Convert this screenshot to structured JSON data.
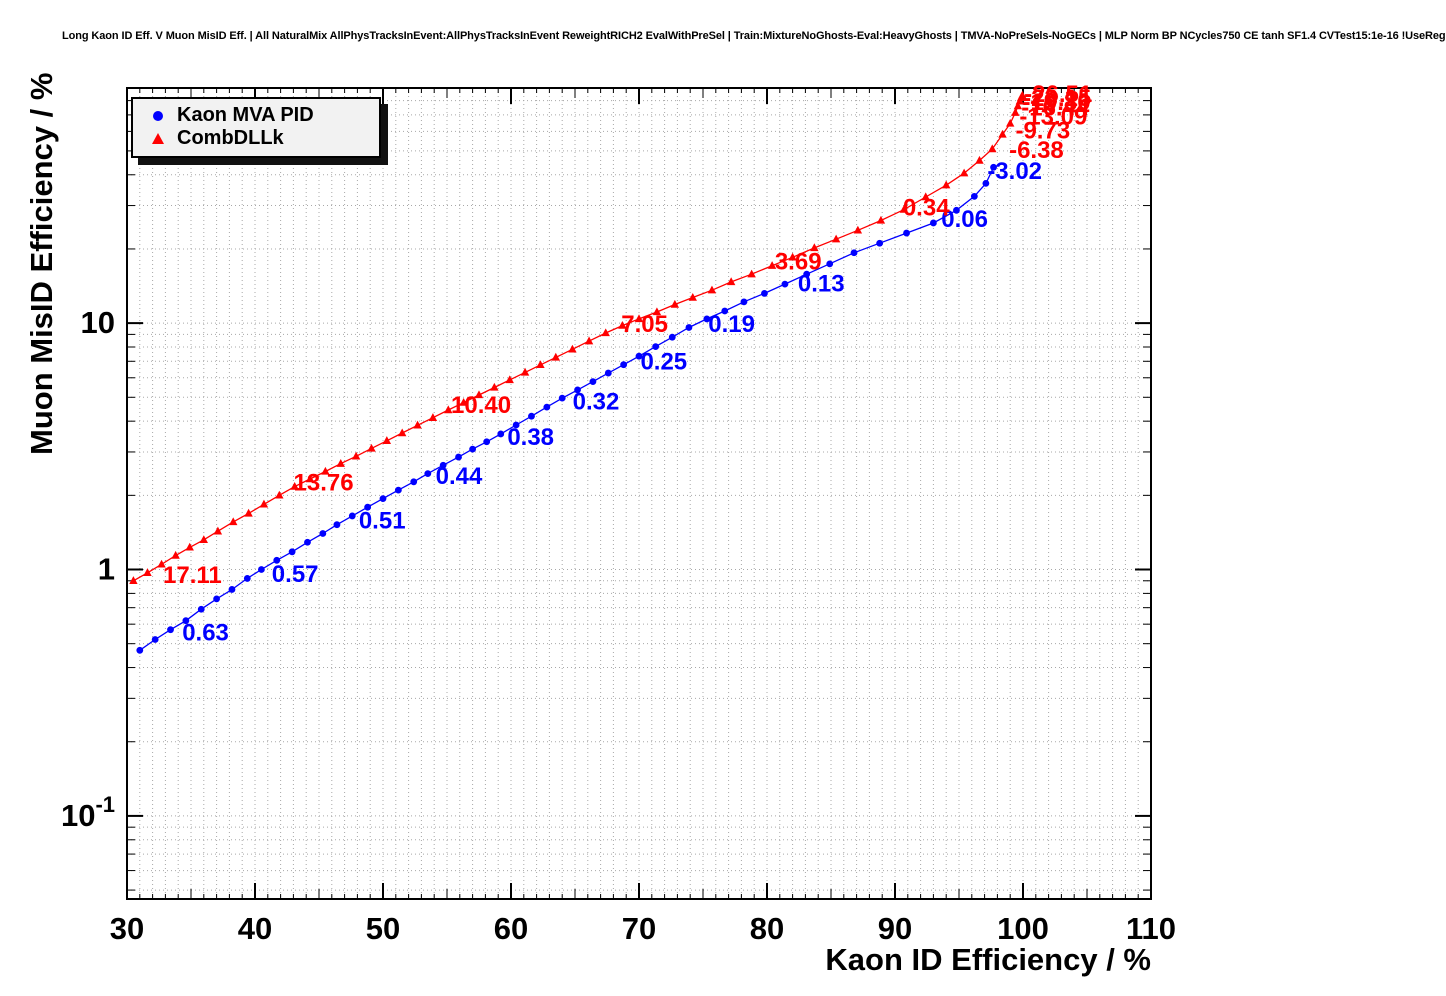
{
  "legend": {
    "entries": [
      {
        "label": "Kaon MVA PID",
        "marker": "circle",
        "color": "#0000ff"
      },
      {
        "label": "CombDLLk",
        "marker": "triangle",
        "color": "#ff0000"
      }
    ]
  },
  "chart_data": {
    "type": "line",
    "title": "Long Kaon ID Eff. V Muon MisID Eff. | All NaturalMix AllPhysTracksInEvent:AllPhysTracksInEvent ReweightRICH2 EvalWithPreSel | Train:MixtureNoGhosts-Eval:HeavyGhosts | TMVA-NoPreSels-NoGECs | MLP Norm BP NCycles750 CE tanh SF1.4 CVTest15:1e-16 !UseReg",
    "xlabel": "Kaon ID Efficiency / %",
    "ylabel": "Muon MisID Efficiency / %",
    "xlim": [
      30,
      110
    ],
    "ylim": [
      0.046,
      90
    ],
    "y_scale": "log",
    "grid": true,
    "legend_position": "top-left",
    "x_ticks": [
      30,
      40,
      50,
      60,
      70,
      80,
      90,
      100,
      110
    ],
    "x_minor_step": 1,
    "y_ticks": [
      {
        "label": "10",
        "value": 10
      },
      {
        "label": "1",
        "value": 1
      },
      {
        "label": "10",
        "exp": "-1",
        "value": 0.1
      }
    ],
    "series": [
      {
        "name": "Kaon MVA PID",
        "color": "#0000ff",
        "marker": "circle",
        "points": [
          [
            31.0,
            0.47
          ],
          [
            32.2,
            0.52
          ],
          [
            33.4,
            0.57
          ],
          [
            34.6,
            0.62
          ],
          [
            35.8,
            0.69
          ],
          [
            37.0,
            0.76
          ],
          [
            38.2,
            0.83
          ],
          [
            39.4,
            0.92
          ],
          [
            40.5,
            1.0
          ],
          [
            41.7,
            1.09
          ],
          [
            42.9,
            1.18
          ],
          [
            44.1,
            1.29
          ],
          [
            45.3,
            1.4
          ],
          [
            46.4,
            1.52
          ],
          [
            47.6,
            1.65
          ],
          [
            48.8,
            1.79
          ],
          [
            50.0,
            1.94
          ],
          [
            51.2,
            2.1
          ],
          [
            52.4,
            2.27
          ],
          [
            53.5,
            2.45
          ],
          [
            54.7,
            2.65
          ],
          [
            55.9,
            2.86
          ],
          [
            57.0,
            3.08
          ],
          [
            58.1,
            3.3
          ],
          [
            59.2,
            3.55
          ],
          [
            60.4,
            3.86
          ],
          [
            61.6,
            4.19
          ],
          [
            62.8,
            4.56
          ],
          [
            64.0,
            4.96
          ],
          [
            65.2,
            5.36
          ],
          [
            66.4,
            5.79
          ],
          [
            67.6,
            6.27
          ],
          [
            68.8,
            6.78
          ],
          [
            70.0,
            7.34
          ],
          [
            71.3,
            8.03
          ],
          [
            72.6,
            8.77
          ],
          [
            73.9,
            9.6
          ],
          [
            75.3,
            10.4
          ],
          [
            76.7,
            11.2
          ],
          [
            78.2,
            12.2
          ],
          [
            79.8,
            13.2
          ],
          [
            81.4,
            14.4
          ],
          [
            83.1,
            15.8
          ],
          [
            84.9,
            17.4
          ],
          [
            86.8,
            19.3
          ],
          [
            88.8,
            21.1
          ],
          [
            90.9,
            23.2
          ],
          [
            93.0,
            25.5
          ],
          [
            94.8,
            28.7
          ],
          [
            96.2,
            32.7
          ],
          [
            97.1,
            36.9
          ],
          [
            97.7,
            42.9
          ]
        ],
        "labels": [
          {
            "text": "0.63",
            "x": 34.0,
            "y": 0.555
          },
          {
            "text": "0.57",
            "x": 41.0,
            "y": 0.96
          },
          {
            "text": "0.51",
            "x": 47.8,
            "y": 1.58
          },
          {
            "text": "0.44",
            "x": 53.8,
            "y": 2.4
          },
          {
            "text": "0.38",
            "x": 59.4,
            "y": 3.45
          },
          {
            "text": "0.32",
            "x": 64.5,
            "y": 4.8
          },
          {
            "text": "0.25",
            "x": 69.8,
            "y": 7.0
          },
          {
            "text": "0.19",
            "x": 75.1,
            "y": 9.9
          },
          {
            "text": "0.13",
            "x": 82.1,
            "y": 14.5
          },
          {
            "text": "0.06",
            "x": 93.3,
            "y": 26.5
          },
          {
            "text": "-3.02",
            "x": 96.9,
            "y": 41.5
          }
        ]
      },
      {
        "name": "CombDLLk",
        "color": "#ff0000",
        "marker": "triangle",
        "points": [
          [
            30.5,
            0.9
          ],
          [
            31.6,
            0.97
          ],
          [
            32.7,
            1.05
          ],
          [
            33.8,
            1.14
          ],
          [
            34.9,
            1.23
          ],
          [
            36.0,
            1.32
          ],
          [
            37.1,
            1.43
          ],
          [
            38.3,
            1.56
          ],
          [
            39.5,
            1.69
          ],
          [
            40.7,
            1.84
          ],
          [
            41.9,
            2.0
          ],
          [
            43.1,
            2.17
          ],
          [
            44.3,
            2.33
          ],
          [
            45.5,
            2.5
          ],
          [
            46.7,
            2.69
          ],
          [
            47.9,
            2.88
          ],
          [
            49.1,
            3.1
          ],
          [
            50.3,
            3.33
          ],
          [
            51.5,
            3.58
          ],
          [
            52.7,
            3.85
          ],
          [
            53.9,
            4.13
          ],
          [
            55.1,
            4.44
          ],
          [
            56.3,
            4.76
          ],
          [
            57.5,
            5.11
          ],
          [
            58.7,
            5.48
          ],
          [
            59.9,
            5.88
          ],
          [
            61.1,
            6.31
          ],
          [
            62.3,
            6.77
          ],
          [
            63.5,
            7.26
          ],
          [
            64.8,
            7.83
          ],
          [
            66.1,
            8.45
          ],
          [
            67.4,
            9.12
          ],
          [
            68.7,
            9.77
          ],
          [
            70.0,
            10.4
          ],
          [
            71.4,
            11.1
          ],
          [
            72.8,
            11.9
          ],
          [
            74.2,
            12.7
          ],
          [
            75.7,
            13.6
          ],
          [
            77.2,
            14.7
          ],
          [
            78.8,
            15.8
          ],
          [
            80.4,
            17.1
          ],
          [
            82.0,
            18.5
          ],
          [
            83.7,
            20.2
          ],
          [
            85.4,
            21.9
          ],
          [
            87.1,
            23.8
          ],
          [
            88.9,
            26.1
          ],
          [
            90.7,
            28.9
          ],
          [
            92.4,
            32.5
          ],
          [
            94.0,
            36.3
          ],
          [
            95.4,
            40.6
          ],
          [
            96.6,
            45.7
          ],
          [
            97.6,
            50.9
          ],
          [
            98.4,
            58.3
          ],
          [
            99.0,
            64.6
          ],
          [
            99.4,
            71.5
          ],
          [
            99.6,
            76.0
          ],
          [
            99.75,
            79.5
          ],
          [
            99.85,
            82.0
          ],
          [
            99.95,
            84.0
          ]
        ],
        "labels": [
          {
            "text": "17.11",
            "x": 32.5,
            "y": 0.95
          },
          {
            "text": "13.76",
            "x": 42.7,
            "y": 2.25
          },
          {
            "text": "10.40",
            "x": 55.0,
            "y": 4.65
          },
          {
            "text": "7.05",
            "x": 68.3,
            "y": 9.9
          },
          {
            "text": "3.69",
            "x": 80.3,
            "y": 17.8
          },
          {
            "text": "0.34",
            "x": 90.3,
            "y": 29.5
          },
          {
            "text": "-6.38",
            "x": 98.6,
            "y": 50.5
          },
          {
            "text": "-9.73",
            "x": 99.1,
            "y": 60.5
          },
          {
            "text": "-13.09",
            "x": 99.4,
            "y": 69
          },
          {
            "text": "-16.44",
            "x": 99.55,
            "y": 75
          },
          {
            "text": "-19.80",
            "x": 99.65,
            "y": 79
          },
          {
            "text": "-23.15",
            "x": 99.7,
            "y": 82
          },
          {
            "text": "-26.51",
            "x": 99.78,
            "y": 85
          }
        ]
      }
    ]
  }
}
